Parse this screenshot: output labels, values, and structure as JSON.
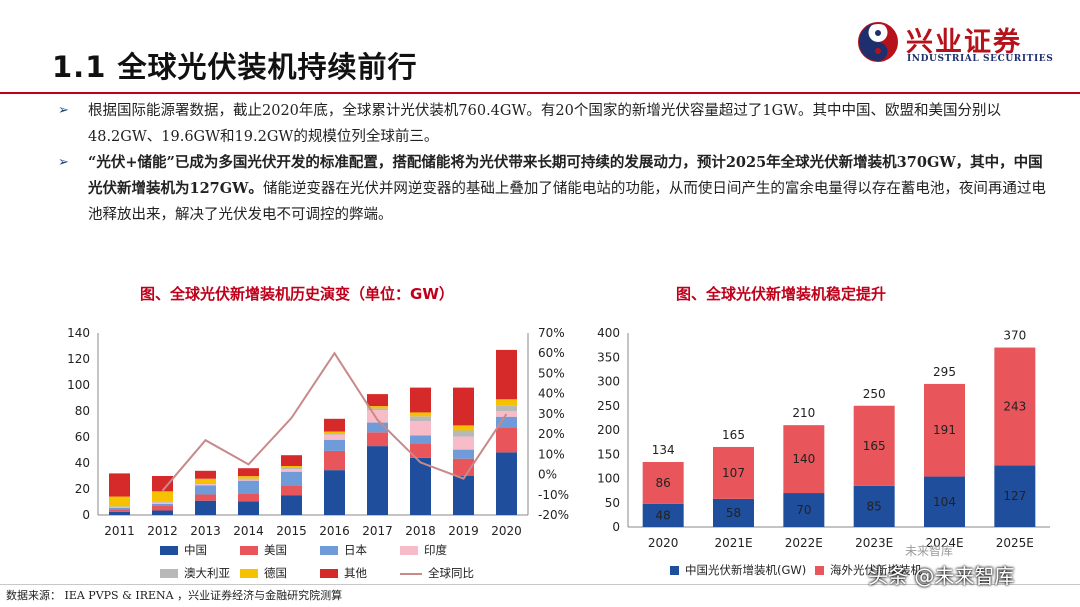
{
  "header": {
    "title": "1.1 全球光伏装机持续前行",
    "logo_cn": "兴业证券",
    "logo_en": "INDUSTRIAL SECURITIES"
  },
  "bullets": {
    "b1": "根据国际能源署数据，截止2020年底，全球累计光伏装机760.4GW。有20个国家的新增光伏容量超过了1GW。其中中国、欧盟和美国分别以48.2GW、19.6GW和19.2GW的规模位列全球前三。",
    "b2_bold": "“光伏+储能”已成为多国光伏开发的标准配置，搭配储能将为光伏带来长期可持续的发展动力，预计2025年全球光伏新增装机370GW，其中，中国光伏新增装机为127GW。",
    "b2_rest": "储能逆变器在光伏并网逆变器的基础上叠加了储能电站的功能，从而使日间产生的富余电量得以存在蓄电池，夜间再通过电池释放出来，解决了光伏发电不可调控的弊端。"
  },
  "footer": {
    "source": "数据来源： IEA PVPS & IRENA ，兴业证券经济与金融研究院测算",
    "watermark": "头条 @未来智库",
    "watermark_small": "未来智库"
  },
  "colors": {
    "china": "#1f4e9c",
    "usa": "#e8555a",
    "japan": "#6f9bd8",
    "india": "#f8bcc8",
    "australia": "#b8b8b8",
    "germany": "#f6c200",
    "other": "#d62a2a",
    "yoy": "#c9898a",
    "overseas": "#e8555a",
    "title_red": "#c0001a"
  },
  "chart_data": [
    {
      "type": "bar",
      "title": "图、全球光伏新增装机历史演变（单位：GW）",
      "categories": [
        "2011",
        "2012",
        "2013",
        "2014",
        "2015",
        "2016",
        "2017",
        "2018",
        "2019",
        "2020"
      ],
      "ylim": [
        0,
        140
      ],
      "yticks": [
        "0",
        "20",
        "40",
        "60",
        "80",
        "100",
        "120",
        "140"
      ],
      "y2lim": [
        -20,
        70
      ],
      "y2ticks": [
        "-20%",
        "-10%",
        "0%",
        "10%",
        "20%",
        "30%",
        "40%",
        "50%",
        "60%",
        "70%"
      ],
      "series": [
        {
          "name": "中国",
          "values": [
            2.5,
            3.5,
            11,
            10.5,
            15,
            34.5,
            53,
            44,
            30,
            48.2
          ]
        },
        {
          "name": "美国",
          "values": [
            1.8,
            3.4,
            4.8,
            6.2,
            7.3,
            14.8,
            10.6,
            10.6,
            13.3,
            19.2
          ]
        },
        {
          "name": "日本",
          "values": [
            1.3,
            1.7,
            6.9,
            9.7,
            11,
            8.6,
            7.5,
            6.7,
            7,
            8.2
          ]
        },
        {
          "name": "印度",
          "values": [
            0.3,
            1,
            1.1,
            0.7,
            2,
            4,
            9.6,
            10.8,
            9.9,
            4.4
          ]
        },
        {
          "name": "澳大利亚",
          "values": [
            0.8,
            1,
            0.8,
            0.9,
            0.9,
            0.8,
            1.3,
            3.8,
            4.8,
            4.1
          ]
        },
        {
          "name": "德国",
          "values": [
            7.5,
            7.6,
            3.3,
            1.9,
            1.5,
            1.5,
            1.8,
            3,
            3.9,
            4.9
          ]
        },
        {
          "name": "其他",
          "values": [
            17.8,
            11.8,
            6.1,
            6.1,
            8.3,
            9.8,
            9.2,
            19.1,
            29.1,
            38
          ]
        }
      ],
      "line": {
        "name": "全球同比",
        "values": [
          null,
          -8,
          17,
          5,
          28,
          60,
          27,
          6,
          -2,
          30
        ]
      }
    },
    {
      "type": "bar",
      "title": "图、全球光伏新增装机稳定提升",
      "categories": [
        "2020",
        "2021E",
        "2022E",
        "2023E",
        "2024E",
        "2025E"
      ],
      "ylim": [
        0,
        400
      ],
      "yticks": [
        "0",
        "50",
        "100",
        "150",
        "200",
        "250",
        "300",
        "350",
        "400"
      ],
      "series": [
        {
          "name": "中国光伏新增装机(GW)",
          "values": [
            48,
            58,
            70,
            85,
            104,
            127
          ]
        },
        {
          "name": "海外光伏新增装机",
          "values": [
            86,
            107,
            140,
            165,
            191,
            243
          ]
        }
      ],
      "totals": [
        134,
        165,
        210,
        250,
        295,
        370
      ]
    }
  ]
}
